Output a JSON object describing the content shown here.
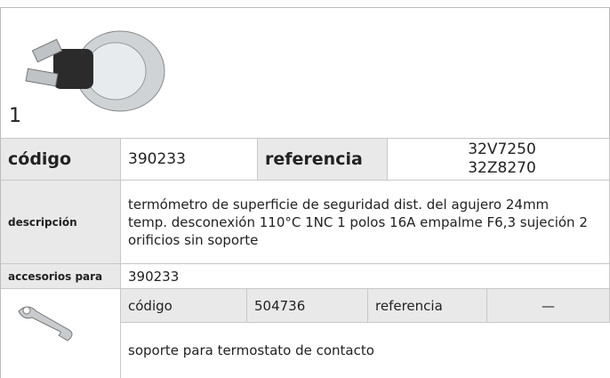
{
  "product": {
    "image_label": "1",
    "code_label": "código",
    "code": "390233",
    "reference_label": "referencia",
    "references": [
      "32V7250",
      "32Z8270"
    ],
    "description_label": "descripción",
    "description_lines": [
      "termómetro de superficie de seguridad  dist. del agujero 24mm",
      "temp. desconexión 110°C 1NC 1 polos 16A empalme F6,3 sujeción 2",
      "orificios sin soporte"
    ],
    "accessories_label": "accesorios para",
    "accessories_for": "390233"
  },
  "accessory": {
    "code_label": "código",
    "code": "504736",
    "reference_label": "referencia",
    "reference": "—",
    "description": "soporte  para termostato de contacto"
  }
}
